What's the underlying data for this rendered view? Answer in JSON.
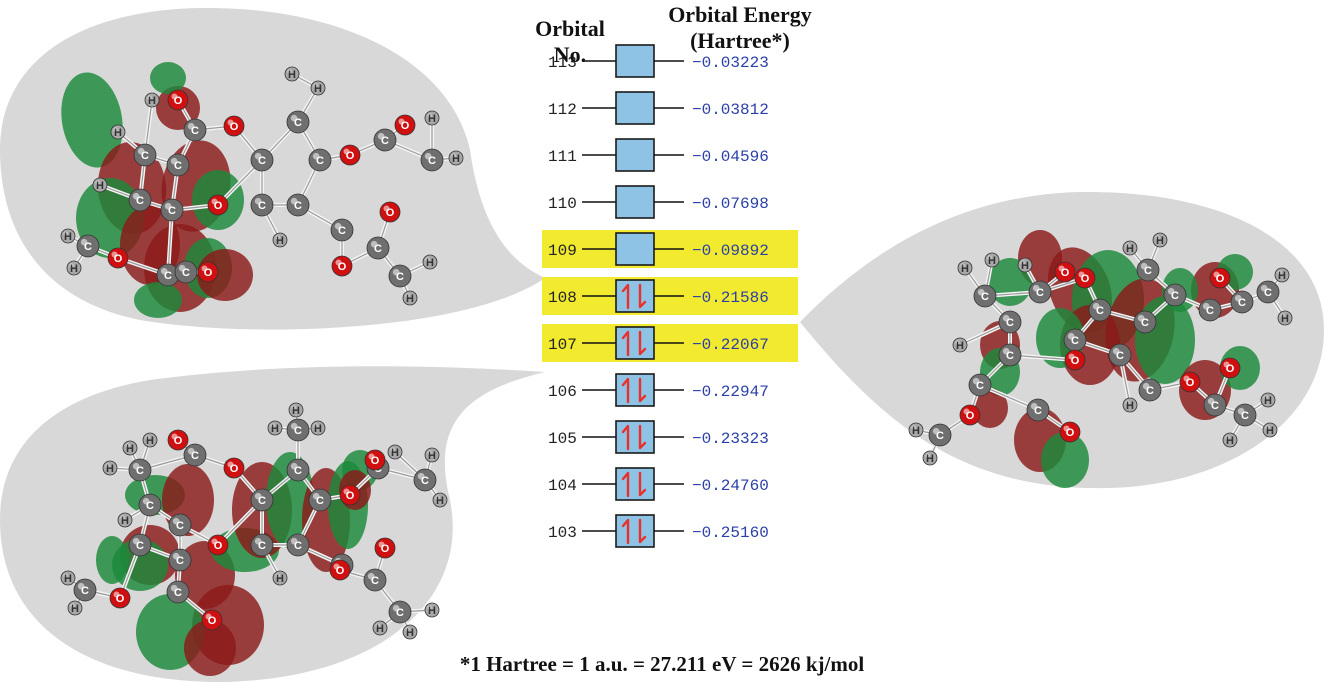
{
  "header": {
    "orbital_no_line1": "Orbital",
    "orbital_no_line2": "No.",
    "energy_line1": "Orbital Energy",
    "energy_line2": "(Hartree*)"
  },
  "orbitals": [
    {
      "no": "113",
      "energy": "−0.03223",
      "occupied": false,
      "highlight": false
    },
    {
      "no": "112",
      "energy": "−0.03812",
      "occupied": false,
      "highlight": false
    },
    {
      "no": "111",
      "energy": "−0.04596",
      "occupied": false,
      "highlight": false
    },
    {
      "no": "110",
      "energy": "−0.07698",
      "occupied": false,
      "highlight": false
    },
    {
      "no": "109",
      "energy": "−0.09892",
      "occupied": false,
      "highlight": true
    },
    {
      "no": "108",
      "energy": "−0.21586",
      "occupied": true,
      "highlight": true
    },
    {
      "no": "107",
      "energy": "−0.22067",
      "occupied": true,
      "highlight": true
    },
    {
      "no": "106",
      "energy": "−0.22947",
      "occupied": true,
      "highlight": false
    },
    {
      "no": "105",
      "energy": "−0.23323",
      "occupied": true,
      "highlight": false
    },
    {
      "no": "104",
      "energy": "−0.24760",
      "occupied": true,
      "highlight": false
    },
    {
      "no": "103",
      "energy": "−0.25160",
      "occupied": true,
      "highlight": false
    }
  ],
  "footnote": "*1 Hartree = 1 a.u. = 27.211 eV = 2626 kj/mol",
  "colors": {
    "highlight": "#f2ea2e",
    "box_fill": "#8ec3e6",
    "box_stroke": "#1a1a1a",
    "electron_arrow": "#e8312a",
    "energy_text": "#2a3fa8",
    "bubble": "#d8d8d8",
    "lobe_red": "#8b1a1a",
    "lobe_green": "#1b8a3a",
    "atom_carbon": "#6f6f6f",
    "atom_oxygen": "#d01010",
    "atom_hydrogen": "#a8a8a8"
  },
  "atom_labels": {
    "carbon": "C",
    "oxygen": "O",
    "hydrogen": "H"
  }
}
